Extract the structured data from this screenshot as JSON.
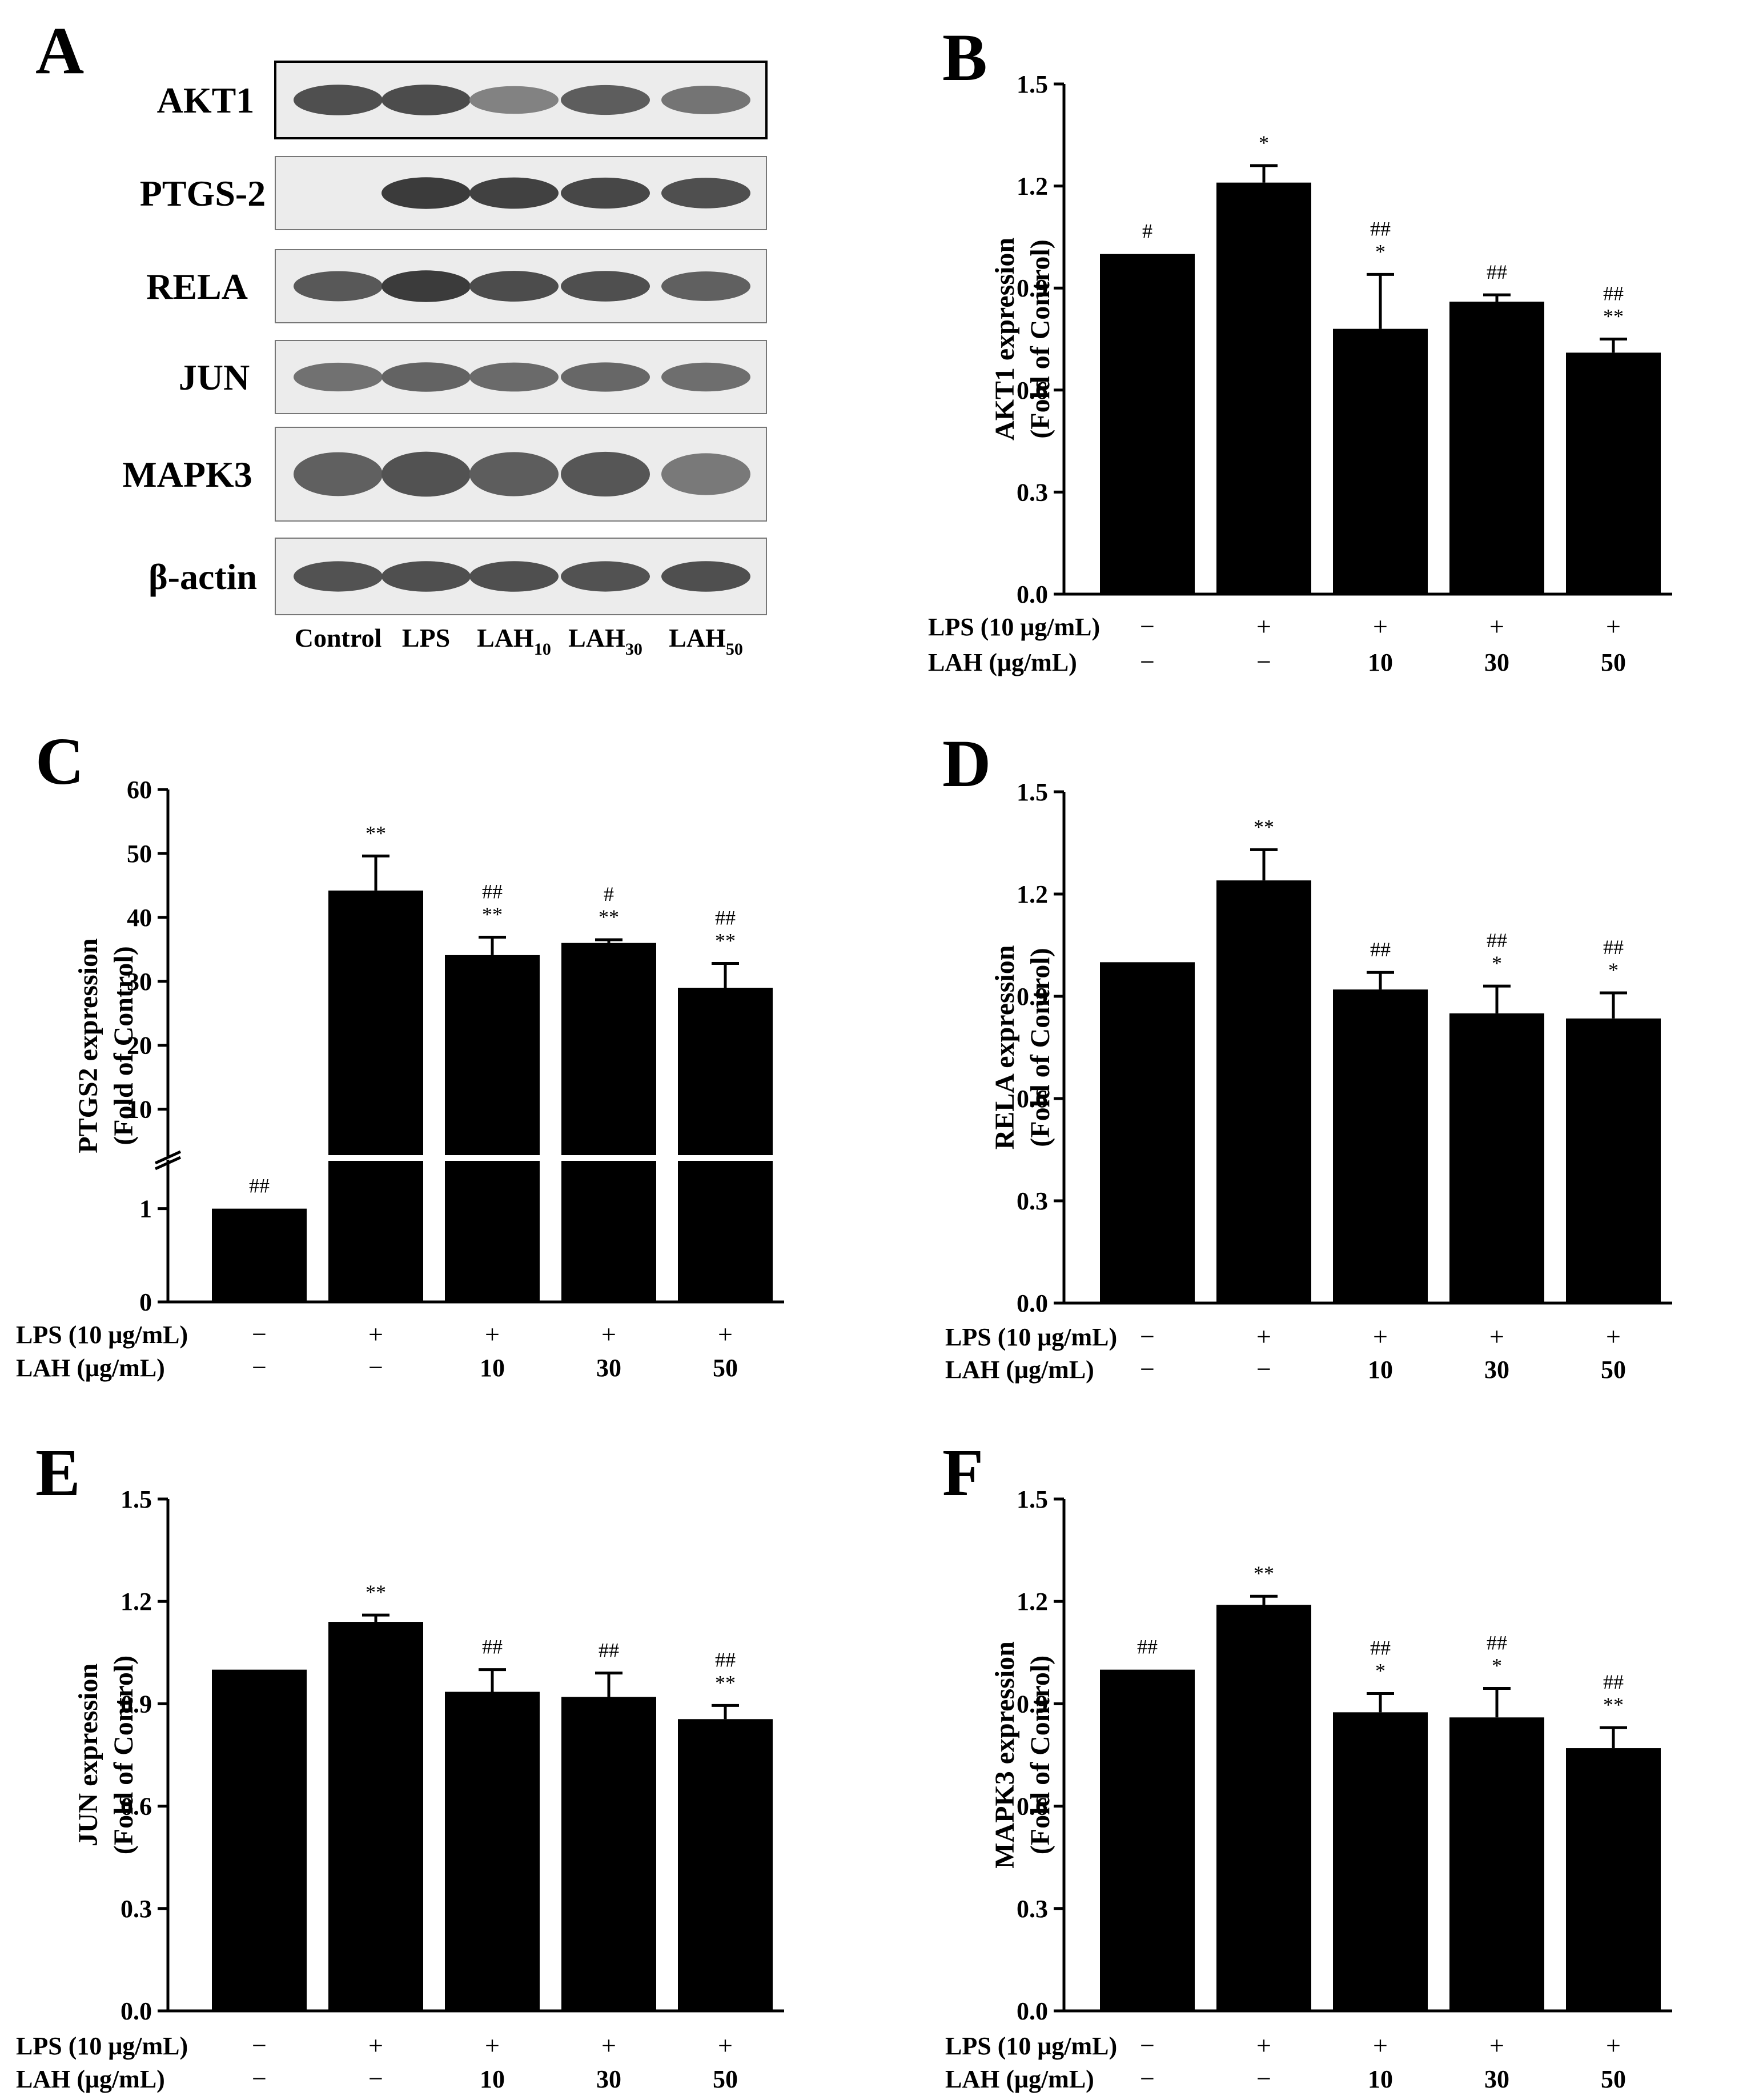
{
  "figure": {
    "blot": {
      "label": "A",
      "rows": [
        "AKT1",
        "PTGS-2",
        "RELA",
        "JUN",
        "MAPK3",
        "β-actin"
      ],
      "lanes": [
        {
          "base": "Control",
          "sub": ""
        },
        {
          "base": "LPS",
          "sub": ""
        },
        {
          "base": "LAH",
          "sub": "10"
        },
        {
          "base": "LAH",
          "sub": "30"
        },
        {
          "base": "LAH",
          "sub": "50"
        }
      ],
      "intensity": [
        [
          0.8,
          0.82,
          0.5,
          0.72,
          0.58
        ],
        [
          0.0,
          0.92,
          0.88,
          0.85,
          0.8
        ],
        [
          0.75,
          0.92,
          0.82,
          0.8,
          0.7
        ],
        [
          0.6,
          0.68,
          0.64,
          0.66,
          0.62
        ],
        [
          0.7,
          0.78,
          0.72,
          0.76,
          0.55
        ],
        [
          0.78,
          0.8,
          0.8,
          0.78,
          0.8
        ]
      ]
    },
    "treatments": {
      "lps_label": "LPS (10 μg/mL)",
      "lah_label": "LAH (μg/mL)",
      "lps": [
        "−",
        "+",
        "+",
        "+",
        "+"
      ],
      "lah": [
        "−",
        "−",
        "10",
        "30",
        "50"
      ]
    }
  },
  "chart_data": [
    {
      "panel": "B",
      "type": "bar",
      "ylabel_line1": "AKT1 expression",
      "ylabel_line2": "(Fold of Control)",
      "ylim": [
        0,
        1.5
      ],
      "ticks": [
        0.0,
        0.3,
        0.6,
        0.9,
        1.2,
        1.5
      ],
      "tick_labels": [
        "0.0",
        "0.3",
        "0.6",
        "0.9",
        "1.2",
        "1.5"
      ],
      "values": [
        1.0,
        1.21,
        0.78,
        0.86,
        0.71
      ],
      "errors": [
        0.0,
        0.05,
        0.16,
        0.02,
        0.04
      ],
      "sig_hash": [
        "#",
        "",
        "##",
        "##",
        "##"
      ],
      "sig_star": [
        "",
        "*",
        "*",
        "",
        "**"
      ]
    },
    {
      "panel": "C",
      "type": "bar",
      "ylabel_line1": "PTGS2 expression",
      "ylabel_line2": "(Fold of Control)",
      "axis_break": true,
      "lower_ylim": [
        0,
        1.5
      ],
      "lower_ticks": [
        0,
        1
      ],
      "lower_tick_labels": [
        "0",
        "1"
      ],
      "upper_ylim": [
        3,
        60
      ],
      "upper_ticks": [
        10,
        20,
        30,
        40,
        50,
        60
      ],
      "upper_tick_labels": [
        "10",
        "20",
        "30",
        "40",
        "50",
        "60"
      ],
      "values": [
        1.0,
        44.2,
        34.1,
        36.0,
        29.0
      ],
      "errors": [
        0.0,
        5.4,
        2.8,
        0.5,
        3.8
      ],
      "sig_hash": [
        "##",
        "",
        "##",
        "#",
        "##"
      ],
      "sig_star": [
        "",
        "**",
        "**",
        "**",
        "**"
      ]
    },
    {
      "panel": "D",
      "type": "bar",
      "ylabel_line1": "RELA expression",
      "ylabel_line2": "(Fold of Control)",
      "ylim": [
        0,
        1.5
      ],
      "ticks": [
        0.0,
        0.3,
        0.6,
        0.9,
        1.2,
        1.5
      ],
      "tick_labels": [
        "0.0",
        "0.3",
        "0.6",
        "0.9",
        "1.2",
        "1.5"
      ],
      "values": [
        1.0,
        1.24,
        0.92,
        0.85,
        0.835
      ],
      "errors": [
        0.0,
        0.09,
        0.05,
        0.08,
        0.075
      ],
      "sig_hash": [
        "",
        "",
        "##",
        "##",
        "##"
      ],
      "sig_star": [
        "",
        "**",
        "",
        "*",
        "*"
      ]
    },
    {
      "panel": "E",
      "type": "bar",
      "ylabel_line1": "JUN expression",
      "ylabel_line2": "(Fold of Control)",
      "ylim": [
        0,
        1.5
      ],
      "ticks": [
        0.0,
        0.3,
        0.6,
        0.9,
        1.2,
        1.5
      ],
      "tick_labels": [
        "0.0",
        "0.3",
        "0.6",
        "0.9",
        "1.2",
        "1.5"
      ],
      "values": [
        1.0,
        1.14,
        0.935,
        0.92,
        0.855
      ],
      "errors": [
        0.0,
        0.02,
        0.065,
        0.07,
        0.04
      ],
      "sig_hash": [
        "",
        "",
        "##",
        "##",
        "##"
      ],
      "sig_star": [
        "",
        "**",
        "",
        "",
        "**"
      ]
    },
    {
      "panel": "F",
      "type": "bar",
      "ylabel_line1": "MAPK3 expression",
      "ylabel_line2": "(Fold of Control)",
      "ylim": [
        0,
        1.5
      ],
      "ticks": [
        0.0,
        0.3,
        0.6,
        0.9,
        1.2,
        1.5
      ],
      "tick_labels": [
        "0.0",
        "0.3",
        "0.6",
        "0.9",
        "1.2",
        "1.5"
      ],
      "values": [
        1.0,
        1.19,
        0.875,
        0.86,
        0.77
      ],
      "errors": [
        0.0,
        0.025,
        0.055,
        0.085,
        0.06
      ],
      "sig_hash": [
        "##",
        "",
        "##",
        "##",
        "##"
      ],
      "sig_star": [
        "",
        "**",
        "*",
        "*",
        "**"
      ]
    }
  ]
}
